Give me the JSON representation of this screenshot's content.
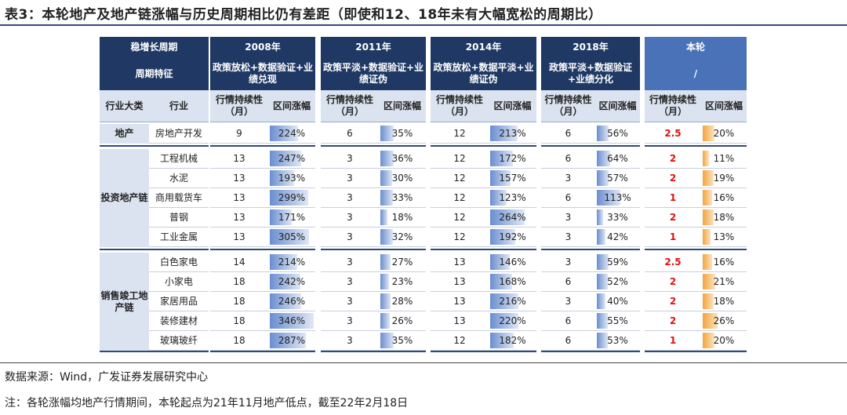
{
  "title": "表3：本轮地产及地产链涨幅与历史周期相比仍有差距（即使和12、18年未有大幅宽松的周期比）",
  "source": "数据来源：Wind，广发证券发展研究中心",
  "note": "注：各轮涨幅均地产行情期间，本轮起点为21年11月地产低点，截至22年2月18日",
  "left_header": {
    "row1": "稳增长周期",
    "row2": "周期特征",
    "col_cat": "行业大类",
    "col_ind": "行业"
  },
  "col_dur": "行情持续性（月）",
  "col_rng": "区间涨幅",
  "periods": [
    {
      "year": "2008年",
      "feature": "政策放松+数据验证+业绩兑现"
    },
    {
      "year": "2011年",
      "feature": "政策平淡+数据验证+业绩证伪"
    },
    {
      "year": "2014年",
      "feature": "政策放松+数据平淡+业绩证伪"
    },
    {
      "year": "2018年",
      "feature": "政策平淡+数据验证+业绩分化"
    },
    {
      "year": "本轮",
      "feature": "/"
    }
  ],
  "categories": [
    {
      "name": "地产",
      "rows": [
        0
      ]
    },
    {
      "name": "投资地产链",
      "rows": [
        1,
        2,
        3,
        4,
        5
      ]
    },
    {
      "name": "销售竣工地产链",
      "rows": [
        6,
        7,
        8,
        9,
        10
      ]
    }
  ],
  "rows": [
    {
      "industry": "房地产开发",
      "d": [
        [
          "9",
          "224%",
          0.65
        ],
        [
          "6",
          "35%",
          0.3
        ],
        [
          "12",
          "213%",
          0.62
        ],
        [
          "6",
          "56%",
          0.28
        ],
        [
          "2.5",
          "20%",
          0.28
        ]
      ]
    },
    {
      "industry": "工程机械",
      "d": [
        [
          "13",
          "247%",
          0.72
        ],
        [
          "3",
          "36%",
          0.31
        ],
        [
          "12",
          "172%",
          0.5
        ],
        [
          "6",
          "64%",
          0.32
        ],
        [
          "2",
          "11%",
          0.15
        ]
      ]
    },
    {
      "industry": "水泥",
      "d": [
        [
          "13",
          "193%",
          0.56
        ],
        [
          "3",
          "30%",
          0.26
        ],
        [
          "12",
          "157%",
          0.46
        ],
        [
          "3",
          "57%",
          0.28
        ],
        [
          "2",
          "19%",
          0.26
        ]
      ]
    },
    {
      "industry": "商用载货车",
      "d": [
        [
          "13",
          "299%",
          0.87
        ],
        [
          "3",
          "33%",
          0.29
        ],
        [
          "12",
          "123%",
          0.36
        ],
        [
          "6",
          "113%",
          0.56
        ],
        [
          "1",
          "16%",
          0.22
        ]
      ]
    },
    {
      "industry": "普钢",
      "d": [
        [
          "13",
          "171%",
          0.5
        ],
        [
          "3",
          "18%",
          0.16
        ],
        [
          "12",
          "264%",
          0.77
        ],
        [
          "3",
          "33%",
          0.16
        ],
        [
          "2",
          "18%",
          0.25
        ]
      ]
    },
    {
      "industry": "工业金属",
      "d": [
        [
          "13",
          "305%",
          0.89
        ],
        [
          "3",
          "32%",
          0.28
        ],
        [
          "12",
          "192%",
          0.56
        ],
        [
          "3",
          "42%",
          0.21
        ],
        [
          "1",
          "13%",
          0.18
        ]
      ]
    },
    {
      "industry": "白色家电",
      "d": [
        [
          "14",
          "214%",
          0.62
        ],
        [
          "3",
          "27%",
          0.23
        ],
        [
          "13",
          "146%",
          0.43
        ],
        [
          "3",
          "59%",
          0.29
        ],
        [
          "2.5",
          "16%",
          0.22
        ]
      ]
    },
    {
      "industry": "小家电",
      "d": [
        [
          "18",
          "242%",
          0.7
        ],
        [
          "3",
          "23%",
          0.2
        ],
        [
          "13",
          "168%",
          0.49
        ],
        [
          "6",
          "52%",
          0.26
        ],
        [
          "2",
          "21%",
          0.29
        ]
      ]
    },
    {
      "industry": "家居用品",
      "d": [
        [
          "18",
          "246%",
          0.72
        ],
        [
          "3",
          "28%",
          0.24
        ],
        [
          "13",
          "216%",
          0.63
        ],
        [
          "3",
          "40%",
          0.2
        ],
        [
          "2",
          "18%",
          0.25
        ]
      ]
    },
    {
      "industry": "装修建材",
      "d": [
        [
          "18",
          "346%",
          1.0
        ],
        [
          "3",
          "26%",
          0.22
        ],
        [
          "13",
          "220%",
          0.64
        ],
        [
          "6",
          "55%",
          0.27
        ],
        [
          "2",
          "26%",
          0.36
        ]
      ]
    },
    {
      "industry": "玻璃玻纤",
      "d": [
        [
          "18",
          "287%",
          0.83
        ],
        [
          "3",
          "35%",
          0.3
        ],
        [
          "12",
          "182%",
          0.53
        ],
        [
          "6",
          "53%",
          0.26
        ],
        [
          "1",
          "20%",
          0.28
        ]
      ]
    }
  ]
}
